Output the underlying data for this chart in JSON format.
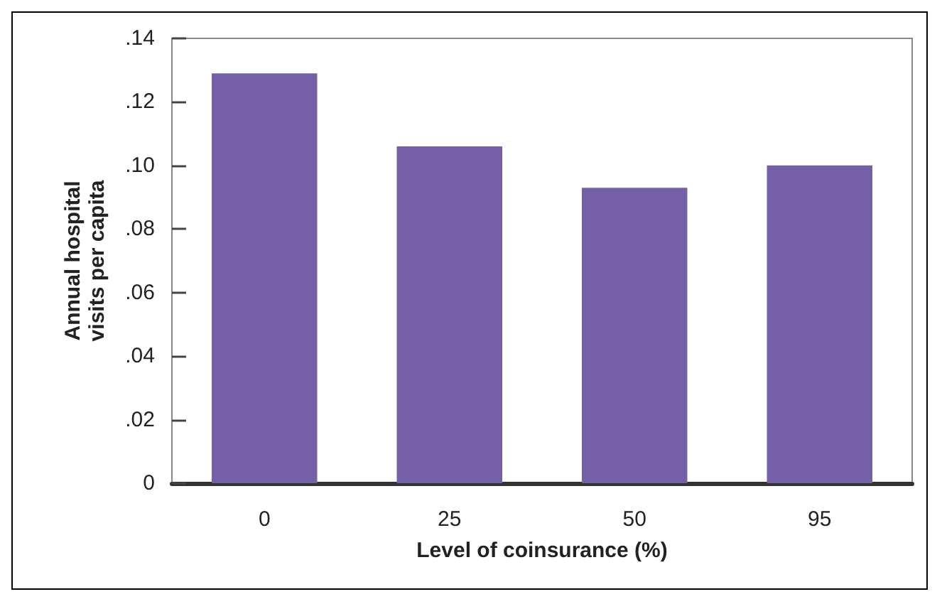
{
  "chart_data": {
    "type": "bar",
    "xlabel": "Level of coinsurance (%)",
    "ylabel": "Annual hospital\nvisits per capita",
    "categories": [
      "0",
      "25",
      "50",
      "95"
    ],
    "values": [
      0.129,
      0.106,
      0.093,
      0.1
    ],
    "color": "#7560a8",
    "ylim": [
      0,
      0.14
    ],
    "yticks": [
      {
        "value": 0,
        "label": "0"
      },
      {
        "value": 0.02,
        "label": ".02"
      },
      {
        "value": 0.04,
        "label": ".04"
      },
      {
        "value": 0.06,
        "label": ".06"
      },
      {
        "value": 0.08,
        "label": ".08"
      },
      {
        "value": 0.1,
        "label": ".10"
      },
      {
        "value": 0.12,
        "label": ".12"
      },
      {
        "value": 0.14,
        "label": ".14"
      }
    ],
    "grid": false
  }
}
